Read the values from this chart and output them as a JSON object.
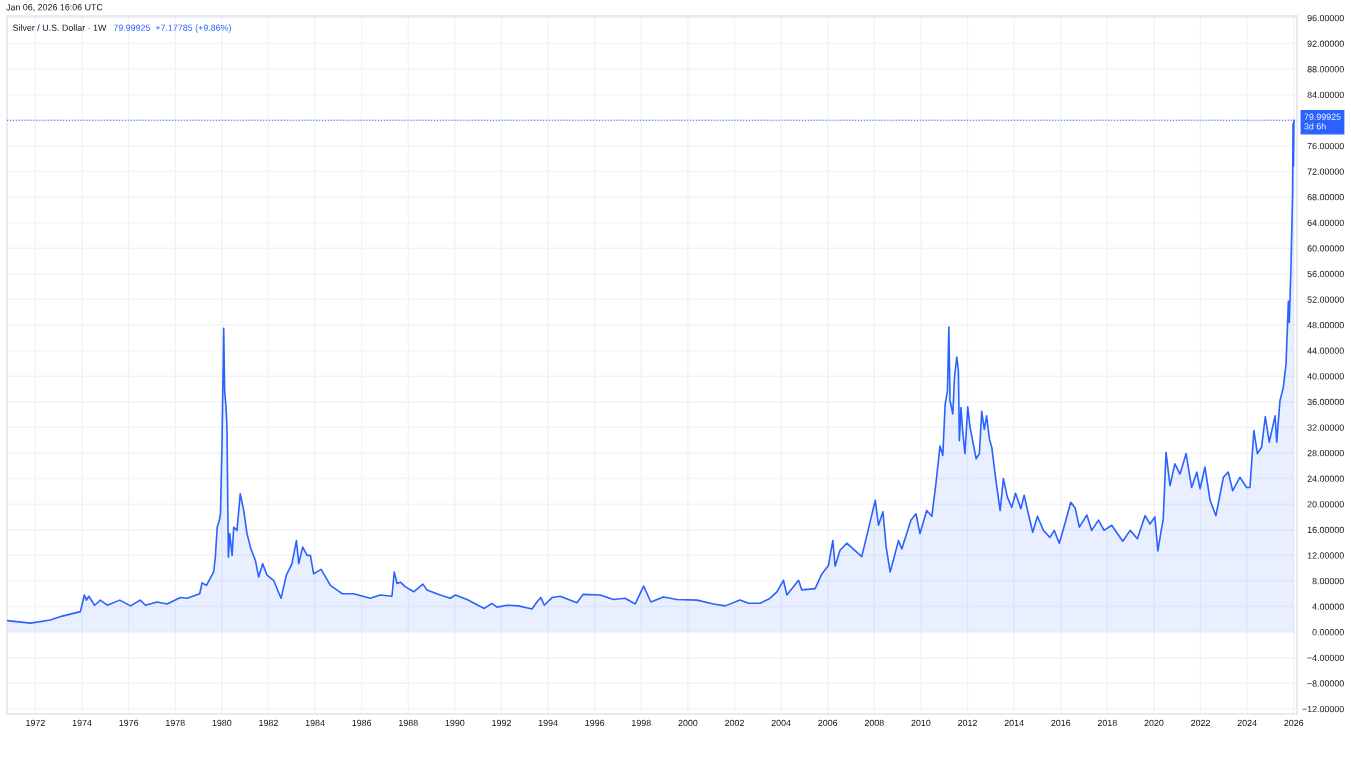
{
  "chart_data": {
    "type": "area",
    "title": "Silver / U.S. Dollar · 1W",
    "subtitle": "79.99925  +7.17785 (+9.86%)",
    "annotations": [
      "Jan 06, 2026 16:06 UTC"
    ],
    "x": [
      1970.79,
      1971.79,
      1972.64,
      1973.15,
      1973.93,
      1974.1,
      1974.19,
      1974.29,
      1974.54,
      1974.79,
      1975.08,
      1975.62,
      1976.08,
      1976.5,
      1976.72,
      1977.22,
      1977.65,
      1978.22,
      1978.51,
      1979.05,
      1979.15,
      1979.34,
      1979.65,
      1979.72,
      1979.8,
      1979.89,
      1979.94,
      1980.01,
      1980.08,
      1980.12,
      1980.18,
      1980.22,
      1980.28,
      1980.34,
      1980.44,
      1980.51,
      1980.65,
      1980.79,
      1980.94,
      1981.08,
      1981.25,
      1981.44,
      1981.58,
      1981.75,
      1981.94,
      1982.22,
      1982.54,
      1982.77,
      1983.01,
      1983.2,
      1983.3,
      1983.47,
      1983.66,
      1983.8,
      1983.94,
      1984.26,
      1984.66,
      1985.16,
      1985.66,
      1986.37,
      1986.8,
      1987.3,
      1987.4,
      1987.52,
      1987.66,
      1987.87,
      1988.23,
      1988.63,
      1988.8,
      1989.37,
      1989.8,
      1990.02,
      1990.52,
      1991.26,
      1991.59,
      1991.81,
      1992.24,
      1992.73,
      1993.31,
      1993.52,
      1993.69,
      1993.84,
      1994.17,
      1994.52,
      1995.24,
      1995.5,
      1996.24,
      1996.81,
      1997.31,
      1997.74,
      1998.1,
      1998.41,
      1998.95,
      1999.53,
      2000.39,
      2001.1,
      2001.6,
      2002.24,
      2002.6,
      2003.1,
      2003.53,
      2003.82,
      2004.1,
      2004.25,
      2004.75,
      2004.89,
      2005.46,
      2005.75,
      2006.03,
      2006.22,
      2006.32,
      2006.53,
      2006.82,
      2007.46,
      2007.7,
      2008.04,
      2008.18,
      2008.37,
      2008.51,
      2008.68,
      2009.04,
      2009.18,
      2009.57,
      2009.79,
      2009.96,
      2010.25,
      2010.47,
      2010.65,
      2010.82,
      2010.94,
      2011.04,
      2011.14,
      2011.2,
      2011.25,
      2011.37,
      2011.44,
      2011.54,
      2011.61,
      2011.65,
      2011.72,
      2011.79,
      2011.89,
      2012.01,
      2012.11,
      2012.37,
      2012.51,
      2012.61,
      2012.72,
      2012.82,
      2012.94,
      2013.04,
      2013.23,
      2013.4,
      2013.54,
      2013.71,
      2013.9,
      2014.06,
      2014.29,
      2014.43,
      2014.61,
      2014.8,
      2015.0,
      2015.26,
      2015.54,
      2015.72,
      2015.94,
      2016.23,
      2016.43,
      2016.62,
      2016.8,
      2017.12,
      2017.33,
      2017.62,
      2017.86,
      2018.19,
      2018.66,
      2018.98,
      2019.29,
      2019.62,
      2019.83,
      2020.04,
      2020.17,
      2020.29,
      2020.4,
      2020.52,
      2020.69,
      2020.9,
      2021.12,
      2021.38,
      2021.62,
      2021.84,
      2021.98,
      2022.19,
      2022.41,
      2022.66,
      2022.98,
      2023.19,
      2023.38,
      2023.69,
      2023.98,
      2024.12,
      2024.29,
      2024.44,
      2024.62,
      2024.78,
      2024.95,
      2025.2,
      2025.27,
      2025.41,
      2025.55,
      2025.67,
      2025.77,
      2025.81,
      2025.88,
      2025.95,
      2025.97,
      2025.99,
      2026.01
    ],
    "series": [
      {
        "color": "#2962ff",
        "values": [
          1.8,
          1.4,
          1.9,
          2.5,
          3.2,
          5.8,
          5.0,
          5.6,
          4.2,
          5.0,
          4.2,
          5.0,
          4.1,
          5.0,
          4.2,
          4.7,
          4.4,
          5.4,
          5.3,
          6.0,
          7.7,
          7.3,
          9.4,
          11.7,
          16.4,
          17.4,
          18.5,
          29.9,
          47.5,
          37.7,
          35.1,
          32.0,
          11.7,
          15.4,
          12.0,
          16.4,
          15.9,
          21.6,
          19.0,
          15.4,
          13.0,
          11.2,
          8.6,
          10.7,
          8.9,
          8.1,
          5.3,
          8.9,
          10.7,
          14.3,
          10.7,
          13.3,
          12.0,
          12.0,
          9.1,
          9.8,
          7.3,
          6.0,
          6.0,
          5.3,
          5.8,
          5.6,
          9.4,
          7.6,
          7.8,
          7.1,
          6.3,
          7.5,
          6.6,
          5.8,
          5.3,
          5.8,
          5.1,
          3.7,
          4.5,
          3.9,
          4.2,
          4.1,
          3.6,
          4.7,
          5.4,
          4.2,
          5.4,
          5.6,
          4.6,
          5.9,
          5.8,
          5.1,
          5.3,
          4.4,
          7.2,
          4.7,
          5.5,
          5.1,
          5.0,
          4.4,
          4.1,
          5.0,
          4.5,
          4.5,
          5.3,
          6.3,
          8.1,
          5.8,
          8.1,
          6.6,
          6.8,
          9.1,
          10.4,
          14.3,
          10.3,
          12.8,
          13.9,
          11.8,
          15.4,
          20.6,
          16.7,
          18.8,
          13.3,
          9.4,
          14.3,
          13.0,
          17.5,
          18.5,
          15.4,
          19.0,
          18.1,
          23.4,
          29.1,
          27.6,
          35.6,
          37.7,
          47.7,
          36.2,
          34.1,
          39.8,
          43.0,
          40.8,
          29.9,
          35.1,
          31.5,
          27.9,
          35.2,
          32.0,
          27.1,
          27.9,
          34.5,
          31.7,
          33.8,
          30.2,
          28.9,
          23.4,
          19.0,
          24.0,
          21.1,
          19.5,
          21.7,
          19.3,
          21.4,
          18.5,
          15.6,
          18.1,
          15.9,
          14.8,
          15.9,
          13.9,
          17.6,
          20.3,
          19.4,
          16.4,
          18.3,
          15.9,
          17.5,
          15.9,
          16.7,
          14.2,
          15.9,
          14.6,
          18.2,
          16.9,
          18.0,
          12.7,
          15.4,
          17.7,
          28.1,
          22.9,
          26.3,
          24.7,
          27.9,
          22.6,
          25.0,
          22.4,
          25.8,
          20.6,
          18.2,
          24.2,
          25.0,
          22.1,
          24.2,
          22.6,
          22.6,
          31.5,
          27.9,
          28.9,
          33.7,
          29.7,
          33.8,
          29.7,
          36.2,
          38.2,
          41.9,
          51.7,
          48.4,
          56.9,
          68.4,
          79.5,
          72.8,
          80.0
        ]
      }
    ],
    "xlim": [
      1970.78,
      2026.14
    ],
    "xticks": [
      1972,
      1974,
      1976,
      1978,
      1980,
      1982,
      1984,
      1986,
      1988,
      1990,
      1992,
      1994,
      1996,
      1998,
      2000,
      2002,
      2004,
      2006,
      2008,
      2010,
      2012,
      2014,
      2016,
      2018,
      2020,
      2022,
      2024,
      2026
    ],
    "ylim": [
      -12.8,
      96.3
    ],
    "yticks": [
      {
        "value": -12,
        "label": "−12.00000"
      },
      {
        "value": -8,
        "label": "−8.00000"
      },
      {
        "value": -4,
        "label": "−4.00000"
      },
      {
        "value": 0,
        "label": "0.00000"
      },
      {
        "value": 4,
        "label": "4.00000"
      },
      {
        "value": 8,
        "label": "8.00000"
      },
      {
        "value": 12,
        "label": "12.00000"
      },
      {
        "value": 16,
        "label": "16.00000"
      },
      {
        "value": 20,
        "label": "20.00000"
      },
      {
        "value": 24,
        "label": "24.00000"
      },
      {
        "value": 28,
        "label": "28.00000"
      },
      {
        "value": 32,
        "label": "32.00000"
      },
      {
        "value": 36,
        "label": "36.00000"
      },
      {
        "value": 40,
        "label": "40.00000"
      },
      {
        "value": 44,
        "label": "44.00000"
      },
      {
        "value": 48,
        "label": "48.00000"
      },
      {
        "value": 52,
        "label": "52.00000"
      },
      {
        "value": 56,
        "label": "56.00000"
      },
      {
        "value": 60,
        "label": "60.00000"
      },
      {
        "value": 64,
        "label": "64.00000"
      },
      {
        "value": 68,
        "label": "68.00000"
      },
      {
        "value": 72,
        "label": "72.00000"
      },
      {
        "value": 76,
        "label": "76.00000"
      },
      {
        "value": 80,
        "label": null
      },
      {
        "value": 84,
        "label": "84.00000"
      },
      {
        "value": 88,
        "label": "88.00000"
      },
      {
        "value": 92,
        "label": "92.00000"
      },
      {
        "value": 96,
        "label": "96.00000"
      }
    ],
    "grid": true,
    "ref_lines": [
      {
        "axis": "y",
        "value": 79.99925,
        "label": "79.99925\n3d 6h",
        "color": "#2962ff",
        "line_style": "dotted"
      }
    ]
  }
}
